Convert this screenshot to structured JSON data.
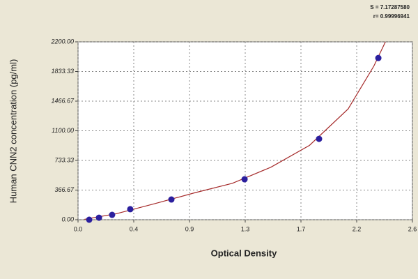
{
  "chart_data": {
    "type": "scatter",
    "annotations": [
      "S = 7.17287580",
      "r= 0.99996941"
    ],
    "x_label": "Optical Density",
    "y_label": "Human  CNN2 concentration (pg/ml)",
    "series": [
      {
        "type": "scatter",
        "color": "#2b1f9e",
        "x": [
          0.087,
          0.163,
          0.265,
          0.406,
          0.726,
          1.295,
          1.874,
          2.335
        ],
        "values": [
          0,
          25,
          60,
          130,
          250,
          500,
          1000,
          2000
        ]
      },
      {
        "type": "line",
        "color": "#a52a2a",
        "x": [
          0.05,
          0.3,
          0.6,
          0.9,
          1.2,
          1.5,
          1.8,
          2.1,
          2.3,
          2.39
        ],
        "values": [
          5,
          75,
          200,
          330,
          450,
          650,
          920,
          1370,
          1900,
          2200
        ]
      }
    ],
    "xlim": [
      0,
      2.6
    ],
    "xticks": [
      {
        "value": 0,
        "label": "0.0"
      },
      {
        "value": 0.4333,
        "label": "0.4"
      },
      {
        "value": 0.8667,
        "label": "0.9"
      },
      {
        "value": 1.3,
        "label": "1.3"
      },
      {
        "value": 1.7333,
        "label": "1.7"
      },
      {
        "value": 2.1667,
        "label": "2.2"
      },
      {
        "value": 2.6,
        "label": "2.6"
      }
    ],
    "ylim": [
      0,
      2200
    ],
    "yticks": [
      {
        "value": 0,
        "label": "0.00"
      },
      {
        "value": 366.67,
        "label": "366.67"
      },
      {
        "value": 733.33,
        "label": "733.33"
      },
      {
        "value": 1100,
        "label": "1100.00"
      },
      {
        "value": 1466.67,
        "label": "1466.67"
      },
      {
        "value": 1833.33,
        "label": "1833.33"
      },
      {
        "value": 2200,
        "label": "2200.00"
      }
    ],
    "grid": true
  }
}
